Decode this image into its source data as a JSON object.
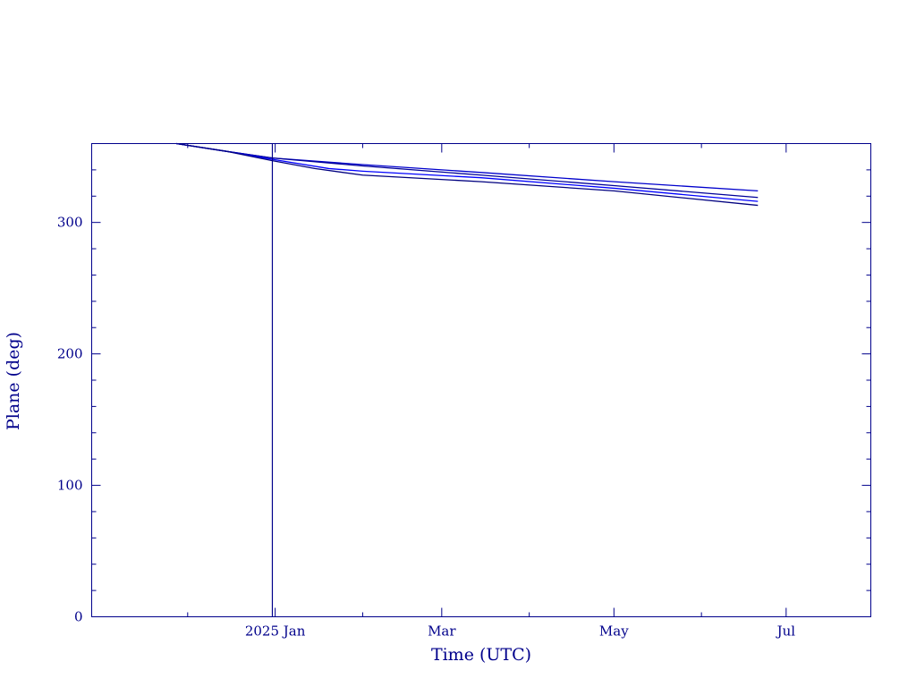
{
  "colors": {
    "axis": "#00008b",
    "text": "#00008b",
    "series": [
      "#0000cc",
      "#000099",
      "#0000ff",
      "#00007f"
    ]
  },
  "chart_data": {
    "type": "line",
    "title": "",
    "xlabel": "Time (UTC)",
    "ylabel": "Plane (deg)",
    "xlim": [
      "2024-10-28",
      "2025-07-31"
    ],
    "ylim": [
      0,
      360
    ],
    "grid": false,
    "x_major_ticks": [
      {
        "date": "2025-01-01",
        "label": "2025 Jan"
      },
      {
        "date": "2025-03-01",
        "label": "Mar"
      },
      {
        "date": "2025-05-01",
        "label": "May"
      },
      {
        "date": "2025-07-01",
        "label": "Jul"
      }
    ],
    "x_minor_ticks": [
      "2024-12-01",
      "2025-02-01",
      "2025-04-01",
      "2025-06-01"
    ],
    "y_ticks": [
      0,
      100,
      200,
      300
    ],
    "y_tick_labels": [
      "0",
      "100",
      "200",
      "300"
    ],
    "y_minor_step": 20,
    "vertical_marker": "2024-12-31",
    "series": [
      {
        "x": [
          "2024-11-27",
          "2024-12-15",
          "2024-12-31",
          "2025-02-01",
          "2025-03-15",
          "2025-05-01",
          "2025-06-21"
        ],
        "values": [
          360,
          354,
          349,
          344,
          338,
          331,
          324
        ]
      },
      {
        "x": [
          "2024-11-27",
          "2024-12-15",
          "2024-12-31",
          "2025-02-01",
          "2025-03-15",
          "2025-05-01",
          "2025-06-21"
        ],
        "values": [
          360,
          354,
          349,
          343,
          336,
          328,
          319
        ]
      },
      {
        "x": [
          "2024-11-27",
          "2024-12-15",
          "2024-12-31",
          "2025-01-20",
          "2025-02-01",
          "2025-03-15",
          "2025-05-01",
          "2025-06-21"
        ],
        "values": [
          360,
          354,
          348,
          341,
          339,
          334,
          326,
          316
        ]
      },
      {
        "x": [
          "2024-11-27",
          "2024-12-15",
          "2024-12-31",
          "2025-01-15",
          "2025-02-01",
          "2025-03-15",
          "2025-05-01",
          "2025-06-21"
        ],
        "values": [
          360,
          354,
          347,
          341,
          336,
          331,
          324,
          313
        ]
      }
    ]
  }
}
